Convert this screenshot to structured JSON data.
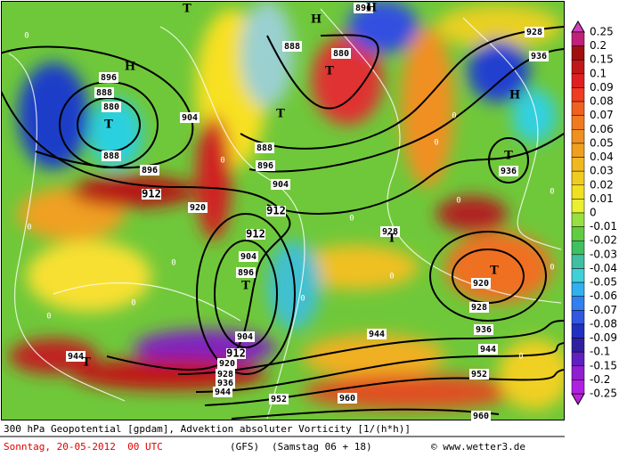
{
  "map": {
    "labels": [
      "896",
      "888",
      "880",
      "888",
      "896",
      "904",
      "912",
      "920",
      "888",
      "880",
      "888",
      "896",
      "904",
      "912",
      "912",
      "904",
      "896",
      "904",
      "912",
      "920",
      "928",
      "936",
      "944",
      "952",
      "960",
      "944",
      "936",
      "944",
      "952",
      "960",
      "928",
      "920",
      "928",
      "936",
      "928",
      "936",
      "896",
      "944"
    ],
    "centers": [
      "H",
      "T",
      "T",
      "H",
      "H",
      "T",
      "T",
      "T",
      "T",
      "H",
      "T",
      "T",
      "T"
    ],
    "zeros": [
      "0",
      "0",
      "0",
      "0",
      "0",
      "0",
      "0",
      "0",
      "0",
      "0",
      "0",
      "0",
      "0",
      "0",
      "0"
    ]
  },
  "legend": {
    "labels": [
      "0.25",
      "0.2",
      "0.15",
      "0.1",
      "0.09",
      "0.08",
      "0.07",
      "0.06",
      "0.05",
      "0.04",
      "0.03",
      "0.02",
      "0.01",
      "0",
      "-0.01",
      "-0.02",
      "-0.03",
      "-0.04",
      "-0.05",
      "-0.06",
      "-0.07",
      "-0.08",
      "-0.09",
      "-0.1",
      "-0.15",
      "-0.2",
      "-0.25"
    ]
  },
  "footer": {
    "title": "300 hPa Geopotential [gpdam], Advektion absoluter Vorticity [1/(h*h)]",
    "date": "Sonntag, 20-05-2012  00 UTC",
    "model": "(GFS)",
    "run": "(Samstag 06 + 18)",
    "credit": "© www.wetter3.de"
  }
}
